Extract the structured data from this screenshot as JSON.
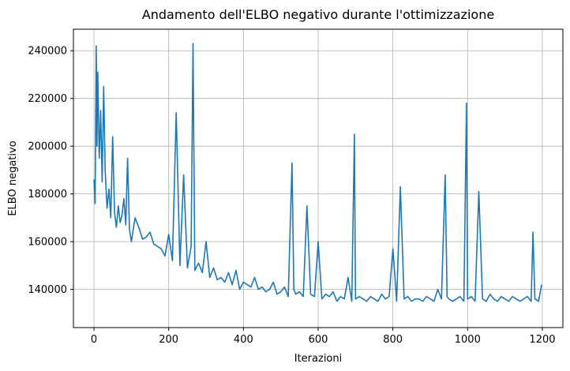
{
  "chart_data": {
    "type": "line",
    "title": "Andamento dell'ELBO negativo durante l'ottimizzazione",
    "xlabel": "Iterazioni",
    "ylabel": "ELBO negativo",
    "xlim": [
      -55,
      1255
    ],
    "ylim": [
      124000,
      249000
    ],
    "xticks": [
      0,
      200,
      400,
      600,
      800,
      1000,
      1200
    ],
    "xtick_labels": [
      "0",
      "200",
      "400",
      "600",
      "800",
      "1000",
      "1200"
    ],
    "yticks": [
      140000,
      160000,
      180000,
      200000,
      220000,
      240000
    ],
    "ytick_labels": [
      "140000",
      "160000",
      "180000",
      "200000",
      "220000",
      "240000"
    ],
    "grid": true,
    "line_color": "#1f77b4",
    "series": [
      {
        "x": [
          0,
          3,
          6,
          8,
          10,
          14,
          18,
          22,
          26,
          30,
          35,
          40,
          45,
          50,
          55,
          60,
          65,
          70,
          75,
          80,
          85,
          90,
          95,
          100,
          110,
          120,
          130,
          140,
          150,
          160,
          170,
          180,
          190,
          200,
          210,
          220,
          230,
          240,
          250,
          260,
          265,
          270,
          280,
          290,
          300,
          310,
          320,
          330,
          340,
          350,
          360,
          370,
          380,
          390,
          400,
          410,
          420,
          430,
          440,
          450,
          460,
          470,
          480,
          490,
          500,
          510,
          520,
          530,
          535,
          540,
          550,
          560,
          570,
          580,
          590,
          600,
          610,
          620,
          630,
          640,
          650,
          660,
          670,
          680,
          690,
          697,
          700,
          710,
          720,
          730,
          740,
          750,
          760,
          770,
          780,
          790,
          800,
          810,
          820,
          830,
          840,
          850,
          860,
          870,
          880,
          890,
          900,
          910,
          920,
          930,
          940,
          945,
          950,
          960,
          970,
          980,
          990,
          997,
          1000,
          1010,
          1020,
          1030,
          1040,
          1050,
          1060,
          1070,
          1080,
          1090,
          1100,
          1110,
          1120,
          1130,
          1140,
          1150,
          1160,
          1170,
          1175,
          1180,
          1190,
          1198
        ],
        "y": [
          186000,
          176000,
          242000,
          200000,
          231000,
          195000,
          215000,
          185000,
          225000,
          190000,
          174000,
          182000,
          170000,
          204000,
          172000,
          166000,
          175000,
          168000,
          171000,
          178000,
          167000,
          195000,
          165000,
          160000,
          170000,
          166000,
          161000,
          162000,
          164000,
          159000,
          158000,
          157000,
          154000,
          163000,
          152000,
          214000,
          150000,
          188000,
          149000,
          158000,
          243000,
          148000,
          151000,
          147000,
          160000,
          145000,
          149000,
          144000,
          145000,
          143000,
          147000,
          142000,
          148000,
          140000,
          143000,
          142000,
          141000,
          145000,
          140000,
          141000,
          139000,
          140000,
          143000,
          138000,
          139000,
          141000,
          137000,
          193000,
          140000,
          138000,
          139000,
          137000,
          175000,
          138000,
          137000,
          160000,
          136000,
          138000,
          137000,
          139000,
          135000,
          137000,
          136000,
          145000,
          135000,
          205000,
          136000,
          137000,
          136000,
          135000,
          137000,
          136000,
          135000,
          138000,
          136000,
          137000,
          157000,
          135000,
          183000,
          136000,
          137000,
          135000,
          136000,
          136000,
          135000,
          137000,
          136000,
          135000,
          140000,
          136000,
          188000,
          137000,
          136000,
          135000,
          136000,
          137000,
          135000,
          218000,
          136000,
          137000,
          135000,
          181000,
          136000,
          135000,
          138000,
          136000,
          135000,
          137000,
          136000,
          135000,
          137000,
          136000,
          135000,
          136000,
          137000,
          135000,
          164000,
          136000,
          135000,
          142000
        ]
      }
    ]
  }
}
